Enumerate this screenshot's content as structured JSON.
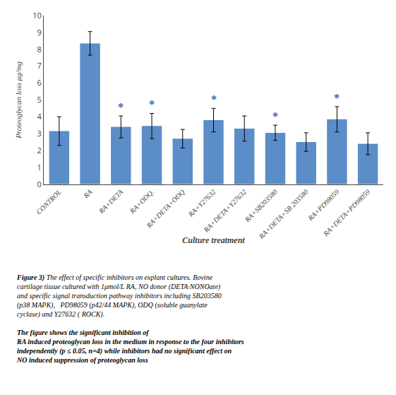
{
  "chart_data": {
    "type": "bar",
    "categories": [
      "CONTROL",
      "RA",
      "RA+DETA",
      "RA+ODQ.",
      "RA+DETA+ODQ",
      "RA+Y27632",
      "RA+DETA+Y27632",
      "RA+SB203580",
      "RA+DETA+SB 203580",
      "RA+PD98059",
      "RA+DETA+PD98059"
    ],
    "values": [
      3.15,
      8.35,
      3.4,
      3.45,
      2.7,
      3.8,
      3.3,
      3.05,
      2.5,
      3.85,
      2.4
    ],
    "errors": [
      0.85,
      0.7,
      0.65,
      0.75,
      0.55,
      0.7,
      0.75,
      0.45,
      0.55,
      0.75,
      0.65
    ],
    "color": "#5b8dc8",
    "xlabel": "Culture treatment",
    "ylabel": "Proteoglycan loss μg/mg",
    "ylim": [
      0,
      10
    ],
    "yticks": [
      0,
      1,
      2,
      3,
      4,
      5,
      6,
      7,
      8,
      9,
      10
    ],
    "grid": false,
    "annotations": [
      {
        "text": "*",
        "category": "RA+DETA",
        "color": "#3a6ab0"
      },
      {
        "text": "*",
        "category": "RA+ODQ.",
        "color": "#3a6ab0"
      },
      {
        "text": "*",
        "category": "RA+Y27632",
        "color": "#3a6ab0"
      },
      {
        "text": "*",
        "category": "RA+SB203580",
        "color": "#3a6ab0"
      },
      {
        "text": "*",
        "category": "RA+PD98059",
        "color": "#3a6ab0"
      }
    ],
    "caption": [
      "Figure 3)",
      "The effect of specific inhibitors on explant cultures. Bovine\ncartilage tissue cultured with 1μmol/L RA, NO donor (DETA·NONOate)\nand specific signal transduction pathway inhibitors including SB203580\n(p38 MAPK),   PD98059 (p42/44 MAPK), ODQ (soluble guanylate\ncyclase) and Y27632 ( ROCK). ",
      "The figure shows the significant inhibition of\nRA induced proteoglycan loss in the medium in response to the four inhibitors\nindependently (p ≤ 0.05, n=4) while inhibitors had no significant effect on\nNO induced suppression of proteoglycan loss"
    ]
  }
}
